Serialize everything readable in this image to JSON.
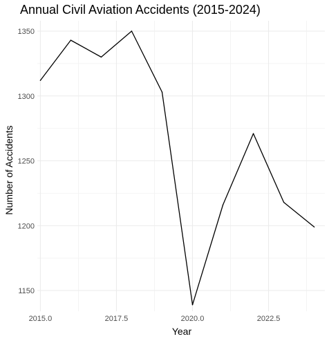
{
  "chart_data": {
    "type": "line",
    "title": "Annual Civil Aviation Accidents (2015-2024)",
    "xlabel": "Year",
    "ylabel": "Number of Accidents",
    "x": [
      2015,
      2016,
      2017,
      2018,
      2019,
      2020,
      2021,
      2022,
      2023,
      2024
    ],
    "series": [
      {
        "values": [
          1312,
          1343,
          1330,
          1350,
          1303,
          1139,
          1216,
          1271,
          1218,
          1199
        ]
      }
    ],
    "xlim": [
      2014.9,
      2024.35
    ],
    "ylim": [
      1134,
      1358
    ],
    "xticks": [
      2015.0,
      2017.5,
      2020.0,
      2022.5
    ],
    "xtick_labels": [
      "2015.0",
      "2017.5",
      "2020.0",
      "2022.5"
    ],
    "yticks": [
      1150,
      1200,
      1250,
      1300,
      1350
    ],
    "ytick_labels": [
      "1150",
      "1200",
      "1250",
      "1300",
      "1350"
    ],
    "grid": true,
    "legend": "none",
    "line_color": "#000000"
  }
}
